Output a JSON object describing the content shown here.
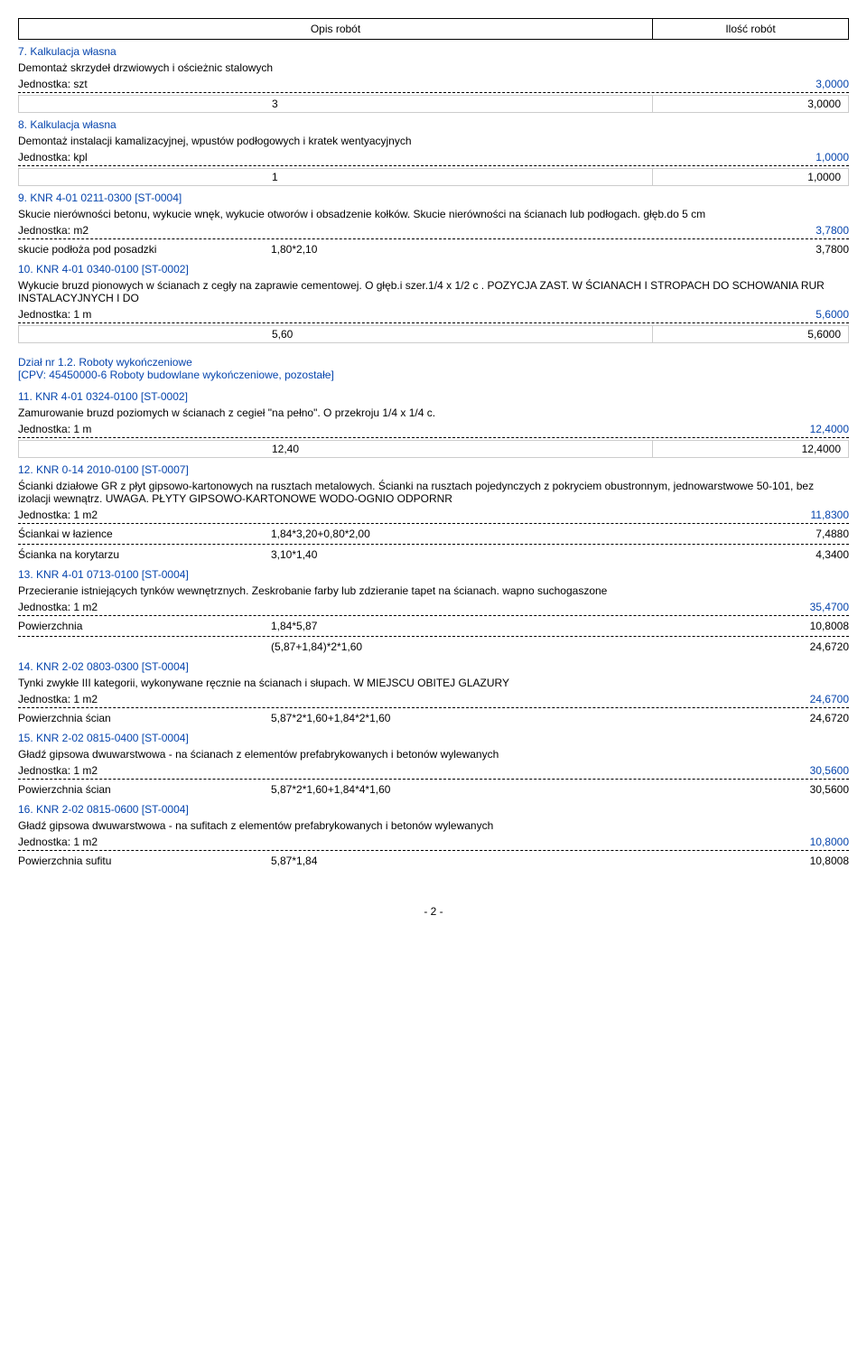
{
  "header": {
    "left": "Opis robót",
    "right": "Ilość robót"
  },
  "items": [
    {
      "title": "7. Kalkulacja własna",
      "desc": "Demontaż skrzydeł drzwiowych i ościeżnic stalowych",
      "unit_label": "Jednostka: szt",
      "unit_total": "3,0000",
      "rows": [
        {
          "label": "",
          "expr": "3",
          "val": "3,0000"
        }
      ]
    },
    {
      "title": "8. Kalkulacja własna",
      "desc": "Demontaż instalacji kamalizacyjnej, wpustów podłogowych i kratek wentyacyjnych",
      "unit_label": "Jednostka: kpl",
      "unit_total": "1,0000",
      "rows": [
        {
          "label": "",
          "expr": "1",
          "val": "1,0000"
        }
      ]
    },
    {
      "title": "9. KNR 4-01  0211-0300   [ST-0004]",
      "desc": "Skucie nierówności betonu, wykucie wnęk, wykucie otworów i obsadzenie kołków. Skucie nierówności na ścianach lub podłogach. głęb.do  5 cm",
      "unit_label": "Jednostka: m2",
      "unit_total": "3,7800",
      "rows": [
        {
          "label": "skucie podłoża pod posadzki",
          "expr": "1,80*2,10",
          "val": "3,7800"
        }
      ]
    },
    {
      "title": "10. KNR 4-01  0340-0100   [ST-0002]",
      "desc": "Wykucie bruzd pionowych w ścianach z cegły na zaprawie cementowej. O głęb.i szer.1/4 x 1/2 c . POZYCJA ZAST.  W ŚCIANACH I STROPACH DO SCHOWANIA RUR  INSTALACYJNYCH I DO",
      "unit_label": "Jednostka: 1 m",
      "unit_total": "5,6000",
      "rows": [
        {
          "label": "",
          "expr": "5,60",
          "val": "5,6000"
        }
      ]
    }
  ],
  "section": {
    "title": "Dział nr 1.2. Roboty wykończeniowe",
    "sub": "[CPV: 45450000-6 Roboty budowlane wykończeniowe, pozostałe]"
  },
  "items2": [
    {
      "title": "11. KNR 4-01  0324-0100   [ST-0002]",
      "desc": "Zamurowanie bruzd poziomych w ścianach z cegieł \"na pełno\". O przekroju  1/4 x 1/4 c.",
      "unit_label": "Jednostka: 1 m",
      "unit_total": "12,4000",
      "rows": [
        {
          "label": "",
          "expr": "12,40",
          "val": "12,4000"
        }
      ]
    },
    {
      "title": "12. KNR 0-14  2010-0100   [ST-0007]",
      "desc": "Ścianki działowe GR z płyt gipsowo-kartonowych na rusztach metalowych. Ścianki na rusztach pojedynczych z pokryciem obustronnym, jednowarstwowe 50-101, bez izolacji wewnątrz. UWAGA. PŁYTY GIPSOWO-KARTONOWE WODO-OGNIO ODPORNR",
      "unit_label": "Jednostka: 1 m2",
      "unit_total": "11,8300",
      "rows": [
        {
          "label": "Ściankai w łazience",
          "expr": "1,84*3,20+0,80*2,00",
          "val": "7,4880"
        },
        {
          "label": "Ścianka na korytarzu",
          "expr": "3,10*1,40",
          "val": "4,3400"
        }
      ]
    },
    {
      "title": "13. KNR 4-01  0713-0100   [ST-0004]",
      "desc": "Przecieranie istniejących tynków wewnętrznych. Zeskrobanie farby lub zdzieranie tapet na ścianach. wapno suchogaszone",
      "unit_label": "Jednostka: 1 m2",
      "unit_total": "35,4700",
      "rows": [
        {
          "label": "Powierzchnia",
          "expr": "1,84*5,87",
          "val": "10,8008"
        },
        {
          "label": "",
          "expr": "(5,87+1,84)*2*1,60",
          "val": "24,6720"
        }
      ]
    },
    {
      "title": "14. KNR 2-02  0803-0300   [ST-0004]",
      "desc": "Tynki zwykłe III kategorii, wykonywane ręcznie na ścianach i słupach. W MIEJSCU OBITEJ GLAZURY",
      "unit_label": "Jednostka: 1 m2",
      "unit_total": "24,6700",
      "rows": [
        {
          "label": "Powierzchnia ścian",
          "expr": "5,87*2*1,60+1,84*2*1,60",
          "val": "24,6720"
        }
      ]
    },
    {
      "title": "15. KNR 2-02  0815-0400   [ST-0004]",
      "desc": "Gładź gipsowa dwuwarstwowa - na ścianach z elementów prefabrykowanych i betonów wylewanych",
      "unit_label": "Jednostka: 1 m2",
      "unit_total": "30,5600",
      "rows": [
        {
          "label": "Powierzchnia ścian",
          "expr": "5,87*2*1,60+1,84*4*1,60",
          "val": "30,5600"
        }
      ]
    },
    {
      "title": "16. KNR 2-02  0815-0600   [ST-0004]",
      "desc": "Gładź gipsowa dwuwarstwowa - na sufitach z elementów prefabrykowanych i betonów wylewanych",
      "unit_label": "Jednostka: 1 m2",
      "unit_total": "10,8000",
      "rows": [
        {
          "label": "Powierzchnia sufitu",
          "expr": "5,87*1,84",
          "val": "10,8008"
        }
      ]
    }
  ],
  "footer": "- 2 -"
}
